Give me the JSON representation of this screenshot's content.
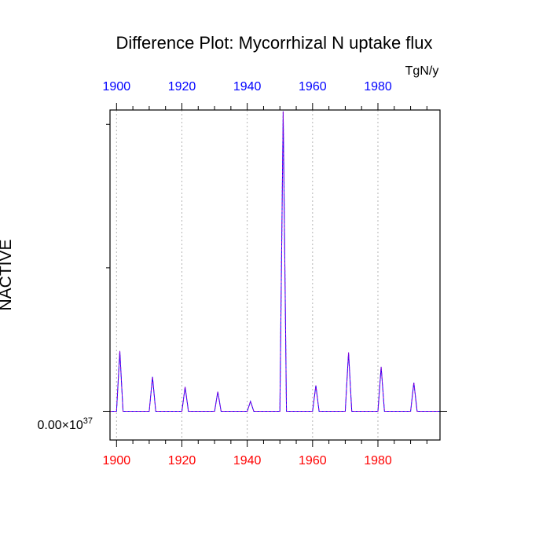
{
  "chart_data": {
    "type": "line",
    "title": "Difference Plot: Mycorrhizal N uptake flux",
    "units_label": "TgN/y",
    "ylabel": "NACTIVE",
    "xlim": [
      1898,
      1999
    ],
    "ylim": [
      -0.1,
      1.05
    ],
    "x_ticks_bottom": [
      1900,
      1920,
      1940,
      1960,
      1980
    ],
    "x_ticks_top": [
      1900,
      1920,
      1940,
      1960,
      1980
    ],
    "x_tick_colors": {
      "bottom": "#ff0000",
      "top": "#0000ff"
    },
    "y_tick_label": "0.00×10",
    "y_tick_exponent": "37",
    "y_tick_value": 0,
    "y_minor_ticks": [
      0.5,
      1.0
    ],
    "grid": "vertical-dotted",
    "series": [
      {
        "color": "#0000ff",
        "dash": "solid",
        "x": [
          1898,
          1900,
          1901,
          1902,
          1910,
          1911,
          1912,
          1920,
          1921,
          1922,
          1930,
          1931,
          1932,
          1940,
          1941,
          1942,
          1950,
          1951,
          1952,
          1960,
          1961,
          1962,
          1970,
          1971,
          1972,
          1980,
          1981,
          1982,
          1990,
          1991,
          1992,
          1999
        ],
        "values": [
          0,
          0,
          0.21,
          0,
          0,
          0.12,
          0,
          0,
          0.085,
          0,
          0,
          0.068,
          0,
          0,
          0.035,
          0,
          0,
          1.045,
          0,
          0,
          0.09,
          0,
          0,
          0.205,
          0,
          0,
          0.155,
          0,
          0,
          0.1,
          0,
          0
        ]
      },
      {
        "color": "#9400d3",
        "dash": "dashed",
        "x": [
          1898,
          1900,
          1901,
          1902,
          1910,
          1911,
          1912,
          1920,
          1921,
          1922,
          1930,
          1931,
          1932,
          1940,
          1941,
          1942,
          1950,
          1951,
          1952,
          1960,
          1961,
          1962,
          1970,
          1971,
          1972,
          1980,
          1981,
          1982,
          1990,
          1991,
          1992,
          1999
        ],
        "values": [
          0,
          0,
          0.21,
          0,
          0,
          0.12,
          0,
          0,
          0.085,
          0,
          0,
          0.068,
          0,
          0,
          0.035,
          0,
          0,
          1.045,
          0,
          0,
          0.09,
          0,
          0,
          0.205,
          0,
          0,
          0.155,
          0,
          0,
          0.1,
          0,
          0
        ]
      }
    ]
  }
}
